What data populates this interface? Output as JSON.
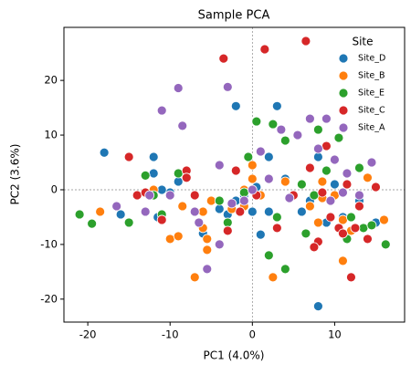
{
  "chart_data": {
    "type": "scatter",
    "title": "Sample PCA",
    "x_label": "PC1 (4.0%)",
    "y_label": "PC2 (3.6%)",
    "legend_title": "Site",
    "legend_position": "upper right",
    "zero_lines": true,
    "xlim": [
      -22.9,
      18.5
    ],
    "ylim": [
      -24.2,
      29.7
    ],
    "xticks": [
      -20,
      -10,
      0,
      10
    ],
    "yticks": [
      -20,
      -10,
      0,
      10,
      20
    ],
    "series": [
      {
        "name": "Site_D",
        "color": "#1f77b4",
        "x": [
          -18,
          -16,
          -12,
          -12,
          -11.5,
          -9,
          -10,
          -6,
          -4,
          -3,
          -2,
          -2,
          0,
          1,
          2,
          3,
          2,
          4,
          6,
          7,
          8,
          8,
          10,
          11,
          13,
          15,
          9,
          -1,
          -11,
          0.5
        ],
        "values": [
          6.8,
          -4.5,
          6,
          3,
          -5,
          1.5,
          -0.5,
          -8,
          -3.5,
          -4.5,
          -2,
          15.3,
          -4,
          -8.2,
          6,
          15.3,
          -4,
          2,
          -4,
          -2,
          6,
          -21.3,
          1,
          -5,
          -2,
          -6,
          -6,
          -1,
          0,
          0.5
        ]
      },
      {
        "name": "Site_B",
        "color": "#ff7f0e",
        "x": [
          -18.5,
          -10,
          -9,
          -7,
          -6,
          -6,
          -4,
          -5,
          -2.5,
          -1,
          0,
          0,
          -1,
          2.5,
          4,
          7,
          8,
          8.5,
          8.5,
          10,
          11,
          11,
          12,
          14,
          16,
          -5.5,
          -8.5,
          -12,
          1,
          -5.5
        ],
        "values": [
          -4,
          -9,
          -8.5,
          -16,
          -4,
          -7,
          -10,
          -2,
          -3.5,
          0,
          4.5,
          2,
          -3,
          -16,
          1.5,
          -3,
          -6,
          -1.5,
          1.5,
          -1,
          -13,
          -5.5,
          -7.5,
          2.2,
          -5.5,
          -11,
          -3,
          0,
          -1,
          -9
        ]
      },
      {
        "name": "Site_E",
        "color": "#2ca02c",
        "x": [
          -21,
          -19.5,
          -15,
          -13,
          -12,
          -11,
          -9,
          -7,
          -4,
          -3,
          -1,
          -0.5,
          0.5,
          2,
          2.5,
          3,
          4,
          4,
          6,
          7.5,
          8,
          9,
          10.5,
          11.5,
          12,
          13,
          13.5,
          14.5,
          16.2,
          6.5
        ],
        "values": [
          -4.5,
          -6.2,
          -6,
          2.6,
          -1,
          -4.5,
          3,
          -4,
          -2,
          -6,
          -0.5,
          6,
          12.5,
          -12,
          12,
          -5,
          9,
          -14.5,
          1,
          -1,
          11,
          3.5,
          9.5,
          -9,
          -5,
          4,
          -7,
          -6.5,
          -10,
          -8
        ]
      },
      {
        "name": "Site_C",
        "color": "#d62728",
        "x": [
          -15,
          -14,
          -13,
          -11,
          -8,
          -8,
          -7,
          -3.5,
          -2,
          -1.5,
          0.5,
          1.5,
          3,
          5,
          6.5,
          7,
          8,
          8.5,
          9,
          10.5,
          11,
          11.5,
          12,
          13,
          14,
          15,
          12.5,
          -3,
          7.5,
          9.5
        ],
        "values": [
          6,
          -1,
          -0.5,
          -5.5,
          3.5,
          2.2,
          -1,
          24,
          3.5,
          -4,
          -1,
          25.7,
          -7,
          -1,
          27.2,
          4,
          -9.5,
          -0.5,
          8,
          -7,
          -8,
          1,
          -16,
          -3,
          -9,
          0.5,
          -7,
          -7.5,
          -10.5,
          -5
        ]
      },
      {
        "name": "Site_A",
        "color": "#9467bd",
        "x": [
          -16.5,
          -13,
          -12.5,
          -11,
          -10,
          -9,
          -8.5,
          -7,
          -5.5,
          -4,
          -3,
          -2.5,
          -1,
          1,
          2,
          3.5,
          5.5,
          7,
          8,
          9,
          10,
          11,
          11.5,
          13,
          14.5,
          -4,
          9.5,
          -6.5,
          0,
          4.5
        ],
        "values": [
          -3,
          -4,
          -1,
          14.5,
          -1,
          18.6,
          11.7,
          -4,
          -14.5,
          4.5,
          18.8,
          -2.5,
          -2,
          7,
          2,
          11,
          10,
          13,
          7.5,
          13,
          5.5,
          -0.5,
          3,
          -1,
          5,
          -10,
          -2,
          -6,
          0,
          -1.5
        ]
      }
    ]
  }
}
